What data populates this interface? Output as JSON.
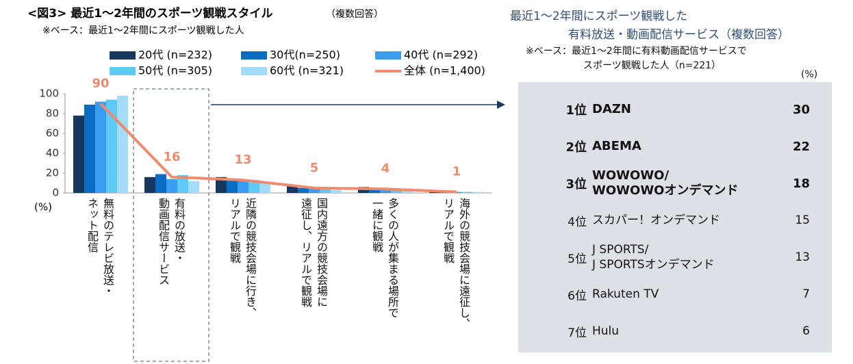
{
  "chart_data": {
    "type": "bar-line",
    "title": "<図3> 最近1～2年間のスポーツ観戦スタイル",
    "title_note": "（複数回答）",
    "subtitle": "※ベース：最近1～2年間にスポーツ観戦した人",
    "y_label": "(%)",
    "categories": [
      "無料のテレビ放送・\nネット配信",
      "有料の放送・\n動画配信サービス",
      "近隣の競技会場に行き、\nリアルで観戦",
      "国内遠方の競技会場に\n遠征し、リアルで観戦",
      "多くの人が集まる場所で\n一緒に観戦",
      "海外の競技会場に遠征し、\nリアルで観戦"
    ],
    "ylim": [
      0,
      100
    ],
    "yticks": [
      0,
      20,
      40,
      60,
      80,
      100
    ],
    "series": [
      {
        "name": "20代 (n=232)",
        "color": "#17375e",
        "values": [
          78,
          16,
          16,
          7,
          6,
          2
        ]
      },
      {
        "name": "30代(n=250)",
        "color": "#0b6cc4",
        "values": [
          89,
          19,
          14,
          5,
          4,
          2
        ]
      },
      {
        "name": "40代 (n=292)",
        "color": "#3a9ef0",
        "values": [
          92,
          14,
          12,
          5,
          4,
          1
        ]
      },
      {
        "name": "50代 (n=305)",
        "color": "#5ccaf5",
        "values": [
          94,
          18,
          13,
          4,
          3,
          1
        ]
      },
      {
        "name": "60代 (n=321)",
        "color": "#a3dcf7",
        "values": [
          98,
          12,
          11,
          3,
          3,
          1
        ]
      },
      {
        "name": "全体 (n=1,400)",
        "color": "#f08a6c",
        "type": "line",
        "values": [
          90,
          16,
          13,
          5,
          4,
          1
        ]
      }
    ]
  },
  "ranking": {
    "title": [
      "最近1～2年間にスポーツ観戦した",
      "有料放送・動画配信サービス（複数回答）"
    ],
    "note": [
      "※ベース：最近1～2年間に有料動画配信サービスで",
      "スポーツ観戦した人（n=221）"
    ],
    "unit": "(%)",
    "rows": [
      {
        "rank": "1位",
        "name": "DAZN",
        "value": 30
      },
      {
        "rank": "2位",
        "name": "ABEMA",
        "value": 22
      },
      {
        "rank": "3位",
        "name": "WOWOWO/\nWOWOWOオンデマンド",
        "value": 18
      },
      {
        "rank": "4位",
        "name": "スカパー！オンデマンド",
        "value": 15
      },
      {
        "rank": "5位",
        "name": "J SPORTS/\nJ SPORTSオンデマンド",
        "value": 13
      },
      {
        "rank": "6位",
        "name": "Rakuten TV",
        "value": 7
      },
      {
        "rank": "7位",
        "name": "Hulu",
        "value": 6
      }
    ]
  }
}
